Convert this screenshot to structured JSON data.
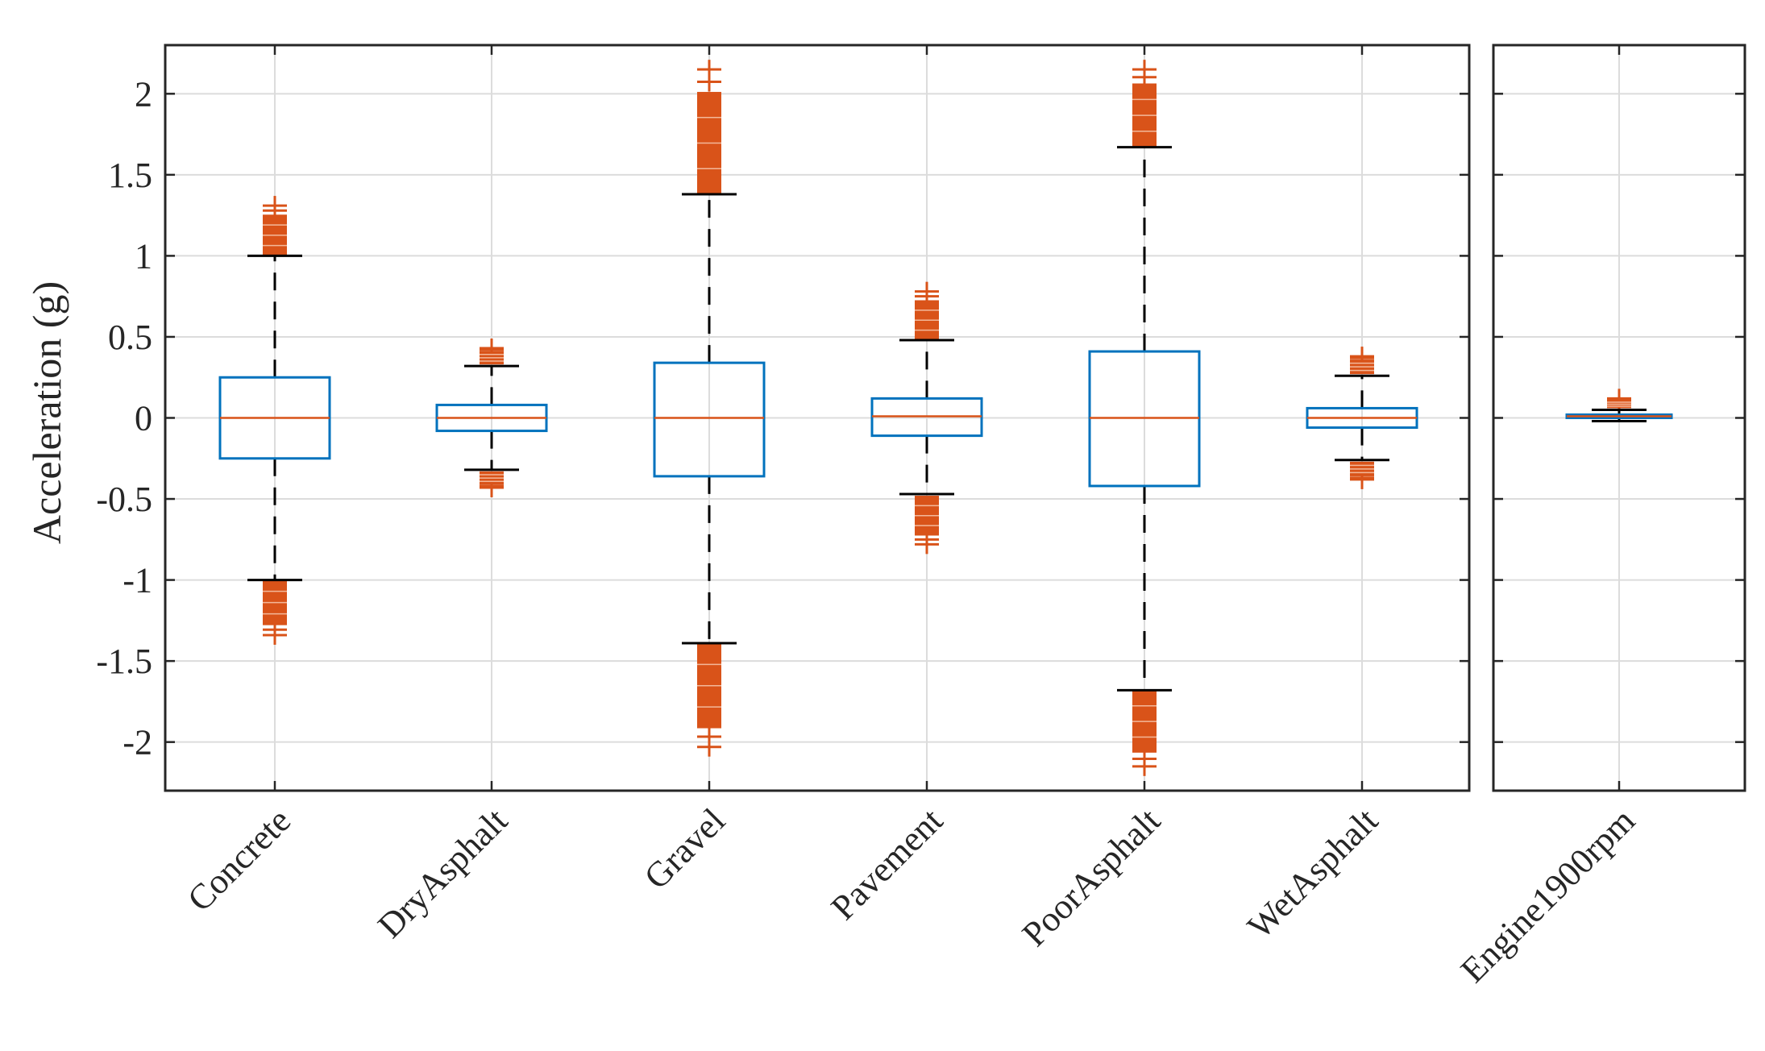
{
  "chart_data": {
    "type": "box",
    "ylabel": "Acceleration (g)",
    "ylim": [
      -2.3,
      2.3
    ],
    "yticks": [
      -2,
      -1.5,
      -1,
      -0.5,
      0,
      0.5,
      1,
      1.5,
      2
    ],
    "ytick_labels": [
      "-2",
      "-1.5",
      "-1",
      "-0.5",
      "0",
      "0.5",
      "1",
      "1.5",
      "2"
    ],
    "grid": true,
    "colors": {
      "box": "#0072BD",
      "median": "#D95319",
      "outlier": "#D95319",
      "whisker": "#000000",
      "grid": "#DCDCDC",
      "axis": "#262626"
    },
    "panels": [
      {
        "name": "road-surfaces",
        "categories": [
          "Concrete",
          "DryAsphalt",
          "Gravel",
          "Pavement",
          "PoorAsphalt",
          "WetAsphalt"
        ],
        "boxes": [
          {
            "label": "Concrete",
            "median": 0.0,
            "q1": -0.25,
            "q3": 0.25,
            "whisker_low": -1.0,
            "whisker_high": 1.0,
            "outliers_low": [
              -1.0,
              -1.34
            ],
            "outliers_high": [
              1.0,
              1.31
            ]
          },
          {
            "label": "DryAsphalt",
            "median": 0.0,
            "q1": -0.08,
            "q3": 0.08,
            "whisker_low": -0.32,
            "whisker_high": 0.32,
            "outliers_low": [
              -0.33,
              -0.43
            ],
            "outliers_high": [
              0.33,
              0.43
            ]
          },
          {
            "label": "Gravel",
            "median": 0.0,
            "q1": -0.36,
            "q3": 0.34,
            "whisker_low": -1.39,
            "whisker_high": 1.38,
            "outliers_low": [
              -1.39,
              -2.03
            ],
            "outliers_high": [
              1.38,
              2.15
            ]
          },
          {
            "label": "Pavement",
            "median": 0.01,
            "q1": -0.11,
            "q3": 0.12,
            "whisker_low": -0.47,
            "whisker_high": 0.48,
            "outliers_low": [
              -0.48,
              -0.78
            ],
            "outliers_high": [
              0.48,
              0.78
            ]
          },
          {
            "label": "PoorAsphalt",
            "median": 0.0,
            "q1": -0.42,
            "q3": 0.41,
            "whisker_low": -1.68,
            "whisker_high": 1.67,
            "outliers_low": [
              -1.68,
              -2.15
            ],
            "outliers_high": [
              1.67,
              2.15
            ]
          },
          {
            "label": "WetAsphalt",
            "median": 0.0,
            "q1": -0.06,
            "q3": 0.06,
            "whisker_low": -0.26,
            "whisker_high": 0.26,
            "outliers_low": [
              -0.27,
              -0.38
            ],
            "outliers_high": [
              0.27,
              0.38
            ]
          }
        ]
      },
      {
        "name": "engine",
        "categories": [
          "Engine1900rpm"
        ],
        "boxes": [
          {
            "label": "Engine1900rpm",
            "median": 0.01,
            "q1": 0.0,
            "q3": 0.02,
            "whisker_low": -0.02,
            "whisker_high": 0.05,
            "outliers_low": [],
            "outliers_high": [
              0.06,
              0.12
            ]
          }
        ]
      }
    ]
  }
}
